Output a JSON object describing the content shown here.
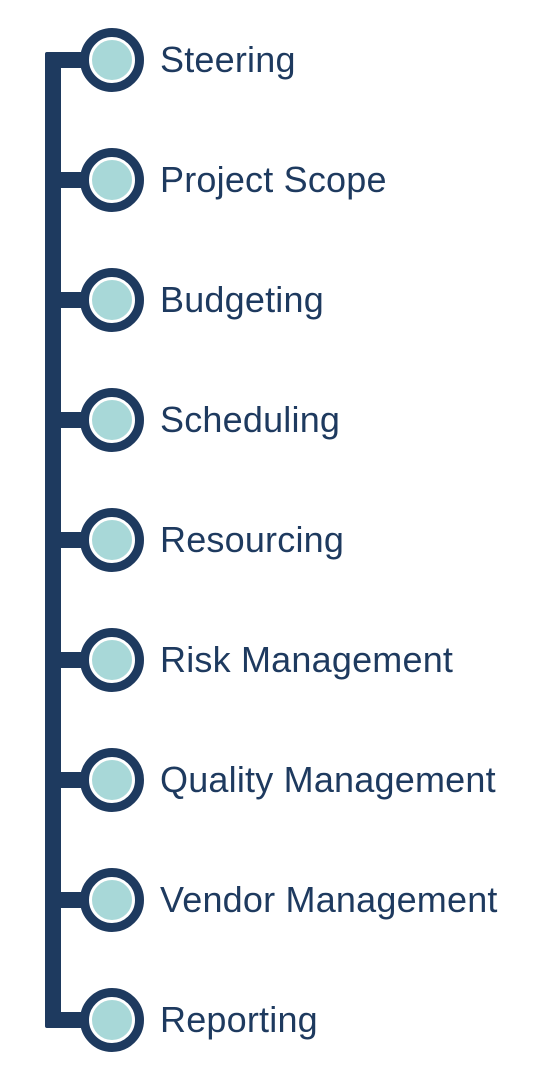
{
  "colors": {
    "line": "#1e3a5f",
    "node_fill": "#a8d8d8",
    "text": "#1e3a5f"
  },
  "items": [
    {
      "label": "Steering"
    },
    {
      "label": "Project Scope"
    },
    {
      "label": "Budgeting"
    },
    {
      "label": "Scheduling"
    },
    {
      "label": "Resourcing"
    },
    {
      "label": "Risk Management"
    },
    {
      "label": "Quality Management"
    },
    {
      "label": "Vendor Management"
    },
    {
      "label": "Reporting"
    }
  ]
}
